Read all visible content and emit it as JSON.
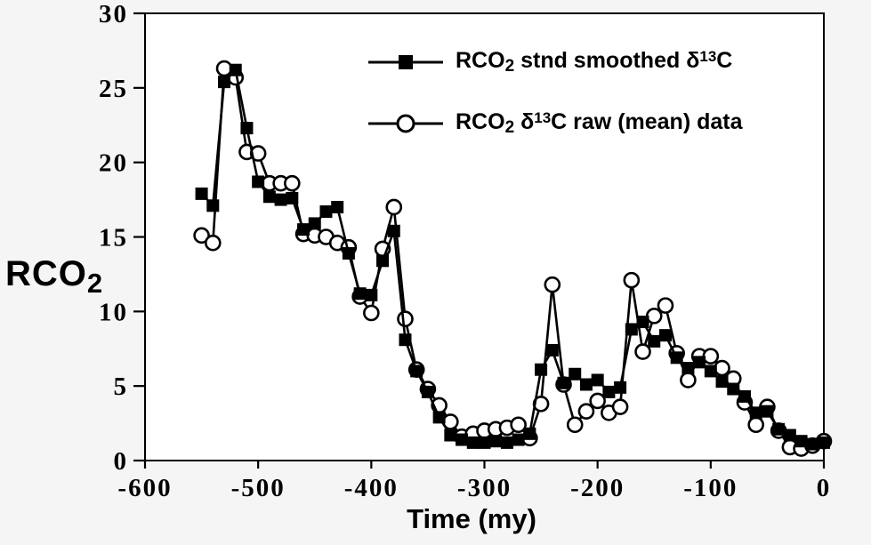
{
  "colors": {
    "fg": "#000000",
    "background": "#f5f5f6",
    "plot_bg": "#ffffff"
  },
  "chart_data": {
    "type": "line",
    "title": "",
    "xlabel": "Time (my)",
    "ylabel": {
      "text": "RCO",
      "sub": "2"
    },
    "xlim": [
      -600,
      0
    ],
    "ylim": [
      0,
      30
    ],
    "xticks": [
      -600,
      -500,
      -400,
      -300,
      -200,
      -100,
      0
    ],
    "yticks": [
      0,
      5,
      10,
      15,
      20,
      25,
      30
    ],
    "grid": false,
    "legend_position": "top-right-inside",
    "x": [
      -550,
      -540,
      -530,
      -520,
      -510,
      -500,
      -490,
      -480,
      -470,
      -460,
      -450,
      -440,
      -430,
      -420,
      -410,
      -400,
      -390,
      -380,
      -370,
      -360,
      -350,
      -340,
      -330,
      -320,
      -310,
      -300,
      -290,
      -280,
      -270,
      -260,
      -250,
      -240,
      -230,
      -220,
      -210,
      -200,
      -190,
      -180,
      -170,
      -160,
      -150,
      -140,
      -130,
      -120,
      -110,
      -100,
      -90,
      -80,
      -70,
      -60,
      -50,
      -40,
      -30,
      -20,
      -10,
      0
    ],
    "series": [
      {
        "id": "smoothed",
        "name": "RCO2 stnd smoothed δ13C",
        "marker": "square",
        "values": [
          17.9,
          17.1,
          25.4,
          26.2,
          22.3,
          18.7,
          17.7,
          17.5,
          17.6,
          15.5,
          15.9,
          16.7,
          17.0,
          13.9,
          11.2,
          11.1,
          13.4,
          15.4,
          8.1,
          6.0,
          4.6,
          2.9,
          1.7,
          1.4,
          1.2,
          1.2,
          1.3,
          1.2,
          1.4,
          1.8,
          6.1,
          7.4,
          5.2,
          5.8,
          5.1,
          5.4,
          4.6,
          4.9,
          8.8,
          9.3,
          8.0,
          8.4,
          6.9,
          6.2,
          6.6,
          6.0,
          5.3,
          4.8,
          4.3,
          3.2,
          3.3,
          2.1,
          1.7,
          1.3,
          1.1,
          1.2
        ]
      },
      {
        "id": "raw",
        "name": "RCO2 δ13C raw (mean) data",
        "marker": "circle",
        "values": [
          15.1,
          14.6,
          26.3,
          25.7,
          20.7,
          20.6,
          18.6,
          18.6,
          18.6,
          15.2,
          15.1,
          15.0,
          14.6,
          14.3,
          11.0,
          9.9,
          14.2,
          17.0,
          9.5,
          6.1,
          4.8,
          3.7,
          2.6,
          1.6,
          1.8,
          2.0,
          2.1,
          2.2,
          2.4,
          1.5,
          3.8,
          11.8,
          5.1,
          2.4,
          3.3,
          4.0,
          3.2,
          3.6,
          12.1,
          7.3,
          9.7,
          10.4,
          7.2,
          5.4,
          7.0,
          7.0,
          6.2,
          5.5,
          3.9,
          2.4,
          3.6,
          2.0,
          0.9,
          0.8,
          1.0,
          1.3
        ]
      }
    ]
  },
  "legend": {
    "items": [
      {
        "p1": "RCO",
        "sub": "2",
        "p2": " stnd smoothed δ",
        "sup": "13",
        "p3": "C"
      },
      {
        "p1": "RCO",
        "sub": "2",
        "p2": " δ",
        "sup": "13",
        "p3": "C raw (mean) data"
      }
    ]
  }
}
